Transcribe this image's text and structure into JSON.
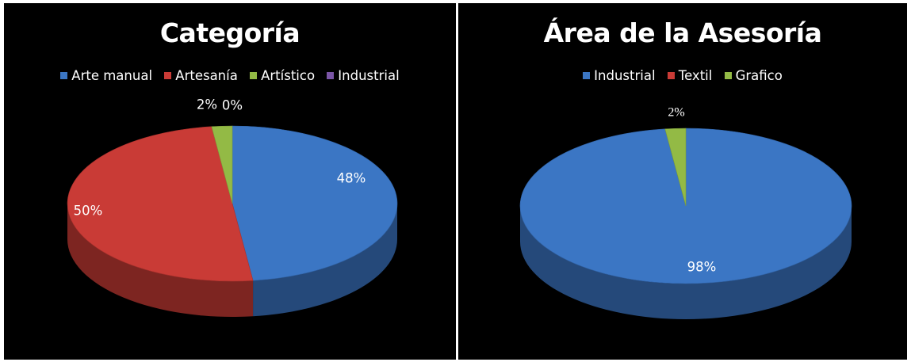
{
  "chart_data": [
    {
      "type": "pie",
      "title": "Categoría",
      "categories": [
        "Arte manual",
        "Artesanía",
        "Artístico",
        "Industrial"
      ],
      "values": [
        48,
        50,
        2,
        0
      ],
      "labels": [
        "48%",
        "50%",
        "2%",
        "0%"
      ],
      "colors": [
        "#3b76c4",
        "#c93b36",
        "#93ba45",
        "#7a55a6"
      ],
      "legend_position": "top",
      "style": "3d"
    },
    {
      "type": "pie",
      "title": "Área de la Asesoría",
      "categories": [
        "Industrial",
        "Textil",
        "Grafico"
      ],
      "values": [
        98,
        0,
        2
      ],
      "labels": [
        "98%",
        "",
        "2%"
      ],
      "colors": [
        "#3b76c4",
        "#c93b36",
        "#93ba45"
      ],
      "legend_position": "top",
      "style": "3d"
    }
  ]
}
